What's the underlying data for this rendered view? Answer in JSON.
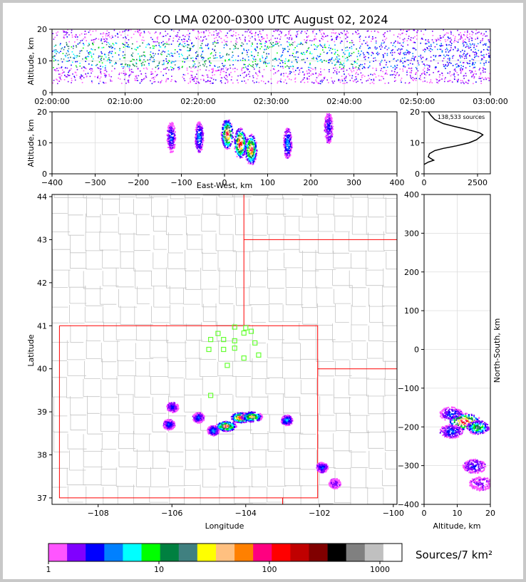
{
  "title": "CO LMA 0200-0300 UTC August 02, 2024",
  "colorbar": {
    "label": "Sources/7 km²",
    "tick_labels": [
      "1",
      "10",
      "100",
      "1000"
    ],
    "colors": [
      "#ff55ff",
      "#8000ff",
      "#0000ff",
      "#0080ff",
      "#00ffff",
      "#00ff00",
      "#008040",
      "#408080",
      "#ffff00",
      "#ffc080",
      "#ff8000",
      "#ff0080",
      "#ff0000",
      "#c00000",
      "#800000",
      "#000000",
      "#808080",
      "#c0c0c0",
      "#ffffff"
    ]
  },
  "chart_data": [
    {
      "type": "heatmap",
      "panel": "altitude-vs-time",
      "xlabel": "",
      "ylabel": "Altitude, km",
      "x_tick_labels": [
        "02:00:00",
        "02:10:00",
        "02:20:00",
        "02:30:00",
        "02:40:00",
        "02:50:00",
        "03:00:00"
      ],
      "y_ticks": [
        0,
        10,
        20
      ],
      "xlim": [
        "02:00:00",
        "03:00:00"
      ],
      "ylim": [
        0,
        20
      ],
      "core_altitude_km": [
        8,
        16
      ]
    },
    {
      "type": "heatmap",
      "panel": "altitude-vs-east-west",
      "xlabel": "East-West, km",
      "ylabel": "Altitude, km",
      "x_ticks": [
        -400,
        -300,
        -200,
        -100,
        0,
        100,
        200,
        300,
        400
      ],
      "y_ticks": [
        0,
        10,
        20
      ],
      "xlim": [
        -400,
        400
      ],
      "ylim": [
        0,
        20
      ],
      "clusters": [
        {
          "x": -125,
          "y": 12,
          "intensity": 3
        },
        {
          "x": -60,
          "y": 12,
          "intensity": 4
        },
        {
          "x": 5,
          "y": 13,
          "intensity": 12
        },
        {
          "x": 35,
          "y": 10,
          "intensity": 14
        },
        {
          "x": 60,
          "y": 8,
          "intensity": 12
        },
        {
          "x": 145,
          "y": 10,
          "intensity": 4
        },
        {
          "x": 240,
          "y": 15,
          "intensity": 2
        }
      ]
    },
    {
      "type": "line",
      "panel": "altitude-histogram",
      "annotation": "138,533 sources",
      "x_ticks": [
        0,
        2500
      ],
      "y_ticks": [
        0,
        10,
        20
      ],
      "xlim": [
        0,
        3100
      ],
      "ylim": [
        0,
        20
      ],
      "x": [
        0,
        200,
        450,
        300,
        200,
        250,
        500,
        900,
        1500,
        2100,
        2450,
        2600,
        2700,
        2750,
        2600,
        2300,
        1900,
        1400,
        900,
        500,
        300,
        200
      ],
      "y": [
        3,
        3.8,
        4.4,
        5,
        5.5,
        6.5,
        7.5,
        8.2,
        9,
        10,
        11,
        11.8,
        12.3,
        12.6,
        13.2,
        13.8,
        14.5,
        15.3,
        16.2,
        17.5,
        19,
        20
      ]
    },
    {
      "type": "heatmap",
      "panel": "plan-view-map",
      "xlabel": "Longitude",
      "ylabel": "Latitude",
      "x_tick_labels": [
        "−108",
        "−106",
        "−104",
        "−102",
        "−100"
      ],
      "y_ticks": [
        37,
        38,
        39,
        40,
        41,
        42,
        43,
        44
      ],
      "xlim": [
        -109.25,
        -99.9
      ],
      "ylim": [
        36.85,
        44.05
      ],
      "stations": [
        {
          "lon": -104.0,
          "lat": 40.95
        },
        {
          "lon": -103.85,
          "lat": 40.87
        },
        {
          "lon": -104.05,
          "lat": 40.83
        },
        {
          "lon": -104.3,
          "lat": 40.97
        },
        {
          "lon": -104.75,
          "lat": 40.82
        },
        {
          "lon": -104.6,
          "lat": 40.68
        },
        {
          "lon": -104.3,
          "lat": 40.65
        },
        {
          "lon": -103.75,
          "lat": 40.6
        },
        {
          "lon": -104.3,
          "lat": 40.48
        },
        {
          "lon": -104.6,
          "lat": 40.45
        },
        {
          "lon": -104.95,
          "lat": 40.68
        },
        {
          "lon": -105.0,
          "lat": 40.45
        },
        {
          "lon": -104.05,
          "lat": 40.25
        },
        {
          "lon": -103.65,
          "lat": 40.32
        },
        {
          "lon": -104.5,
          "lat": 40.08
        },
        {
          "lon": -104.95,
          "lat": 39.38
        }
      ],
      "clusters": [
        {
          "lon": -106.0,
          "lat": 39.12,
          "intensity": 2
        },
        {
          "lon": -106.1,
          "lat": 38.72,
          "intensity": 3
        },
        {
          "lon": -105.3,
          "lat": 38.88,
          "intensity": 3
        },
        {
          "lon": -104.9,
          "lat": 38.58,
          "intensity": 4
        },
        {
          "lon": -104.55,
          "lat": 38.68,
          "intensity": 12
        },
        {
          "lon": -104.15,
          "lat": 38.88,
          "intensity": 14
        },
        {
          "lon": -103.85,
          "lat": 38.9,
          "intensity": 10
        },
        {
          "lon": -102.9,
          "lat": 38.82,
          "intensity": 4
        },
        {
          "lon": -101.95,
          "lat": 37.72,
          "intensity": 3
        },
        {
          "lon": -101.6,
          "lat": 37.35,
          "intensity": 1
        }
      ]
    },
    {
      "type": "heatmap",
      "panel": "north-south-vs-altitude",
      "xlabel": "Altitude, km",
      "ylabel": "North-South, km",
      "x_ticks": [
        0,
        10,
        20
      ],
      "y_ticks": [
        400,
        300,
        200,
        100,
        0,
        -100,
        -200,
        -300,
        -400
      ],
      "xlim": [
        0,
        20
      ],
      "ylim": [
        -400,
        400
      ],
      "clusters": [
        {
          "x": 8,
          "y": -165,
          "intensity": 3
        },
        {
          "x": 12,
          "y": -185,
          "intensity": 14
        },
        {
          "x": 16,
          "y": -200,
          "intensity": 8
        },
        {
          "x": 8,
          "y": -210,
          "intensity": 3
        },
        {
          "x": 15,
          "y": -300,
          "intensity": 2
        },
        {
          "x": 17,
          "y": -345,
          "intensity": 1
        }
      ]
    }
  ]
}
